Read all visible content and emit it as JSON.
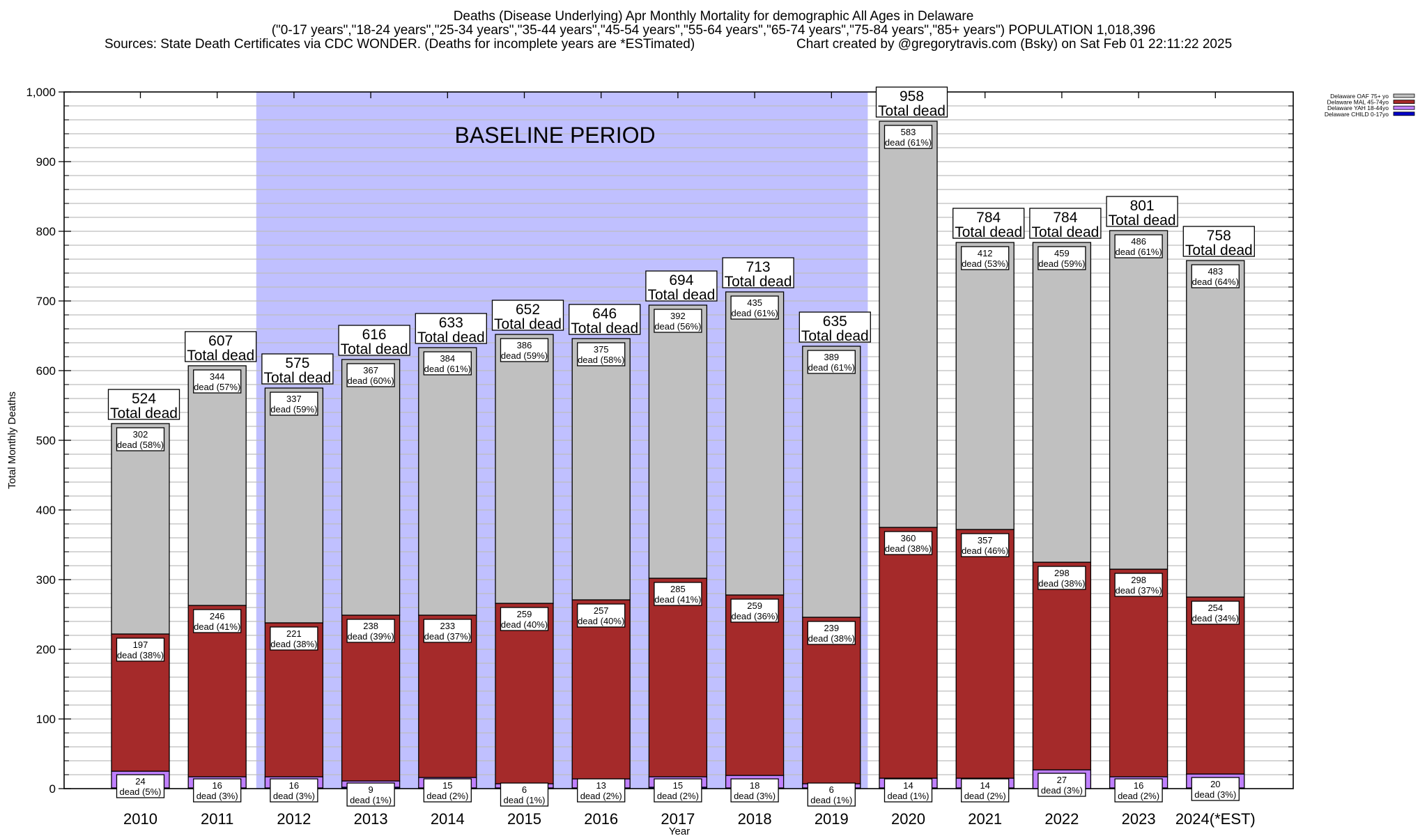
{
  "header": {
    "title": "Deaths (Disease Underlying) Apr Monthly Mortality for demographic All Ages in Delaware",
    "subtitle": "(\"0-17 years\",\"18-24 years\",\"25-34 years\",\"35-44 years\",\"45-54 years\",\"55-64 years\",\"65-74 years\",\"75-84 years\",\"85+ years\") POPULATION 1,018,396",
    "sources": "Sources: State Death Certificates via CDC WONDER. (Deaths for incomplete years are *ESTimated)",
    "credit": "Chart created by @gregorytravis.com (Bsky) on Sat Feb 01 22:11:22 2025"
  },
  "chart_data": {
    "type": "bar",
    "stacked": true,
    "title": "Deaths (Disease Underlying) Apr Monthly Mortality for demographic All Ages in Delaware",
    "xlabel": "Year",
    "ylabel": "Total Monthly Deaths",
    "ylim": [
      0,
      1000
    ],
    "yticks": [
      0,
      100,
      200,
      300,
      400,
      500,
      600,
      700,
      800,
      900,
      1000
    ],
    "ytick_labels": [
      "0",
      "100",
      "200",
      "300",
      "400",
      "500",
      "600",
      "700",
      "800",
      "900",
      "1,000"
    ],
    "minor_grid_step": 20,
    "grid": true,
    "legend_position": "top-right",
    "categories": [
      "2010",
      "2011",
      "2012",
      "2013",
      "2014",
      "2015",
      "2016",
      "2017",
      "2018",
      "2019",
      "2020",
      "2021",
      "2022",
      "2023",
      "2024(*EST)"
    ],
    "baseline_period": {
      "label": "BASELINE PERIOD",
      "from": "2012",
      "to": "2019",
      "color": "#c0c0ff"
    },
    "total_label_suffix": "Total dead",
    "segment_label_prefix": "dead",
    "totals": [
      524,
      607,
      575,
      616,
      633,
      652,
      646,
      694,
      713,
      635,
      958,
      784,
      784,
      801,
      758
    ],
    "series": [
      {
        "name": "Delaware CHILD 0-17yo",
        "color": "#0000c8",
        "values": [
          1,
          1,
          1,
          2,
          1,
          1,
          1,
          2,
          1,
          1,
          1,
          1,
          0,
          1,
          1
        ],
        "labeled": false
      },
      {
        "name": "Delaware YAH 18-44yo",
        "color": "#c080ff",
        "values": [
          24,
          16,
          16,
          9,
          15,
          6,
          13,
          15,
          18,
          6,
          14,
          14,
          27,
          16,
          20
        ],
        "pct": [
          "5%",
          "3%",
          "3%",
          "1%",
          "2%",
          "1%",
          "2%",
          "2%",
          "3%",
          "1%",
          "1%",
          "2%",
          "3%",
          "2%",
          "3%"
        ],
        "labeled": true
      },
      {
        "name": "Delaware MAL 45-74yo",
        "color": "#a52a2a",
        "values": [
          197,
          246,
          221,
          238,
          233,
          259,
          257,
          285,
          259,
          239,
          360,
          357,
          298,
          298,
          254
        ],
        "pct": [
          "38%",
          "41%",
          "38%",
          "39%",
          "37%",
          "40%",
          "40%",
          "41%",
          "36%",
          "38%",
          "38%",
          "46%",
          "38%",
          "37%",
          "34%"
        ],
        "labeled": true
      },
      {
        "name": "Delaware OAF 75+ yo",
        "color": "#c0c0c0",
        "values": [
          302,
          344,
          337,
          367,
          384,
          386,
          375,
          392,
          435,
          389,
          583,
          412,
          459,
          486,
          483
        ],
        "pct": [
          "58%",
          "57%",
          "59%",
          "60%",
          "61%",
          "59%",
          "58%",
          "56%",
          "61%",
          "61%",
          "61%",
          "53%",
          "59%",
          "61%",
          "64%"
        ],
        "labeled": true
      }
    ],
    "legend_order": [
      "Delaware OAF 75+ yo",
      "Delaware MAL 45-74yo",
      "Delaware YAH 18-44yo",
      "Delaware CHILD 0-17yo"
    ]
  }
}
